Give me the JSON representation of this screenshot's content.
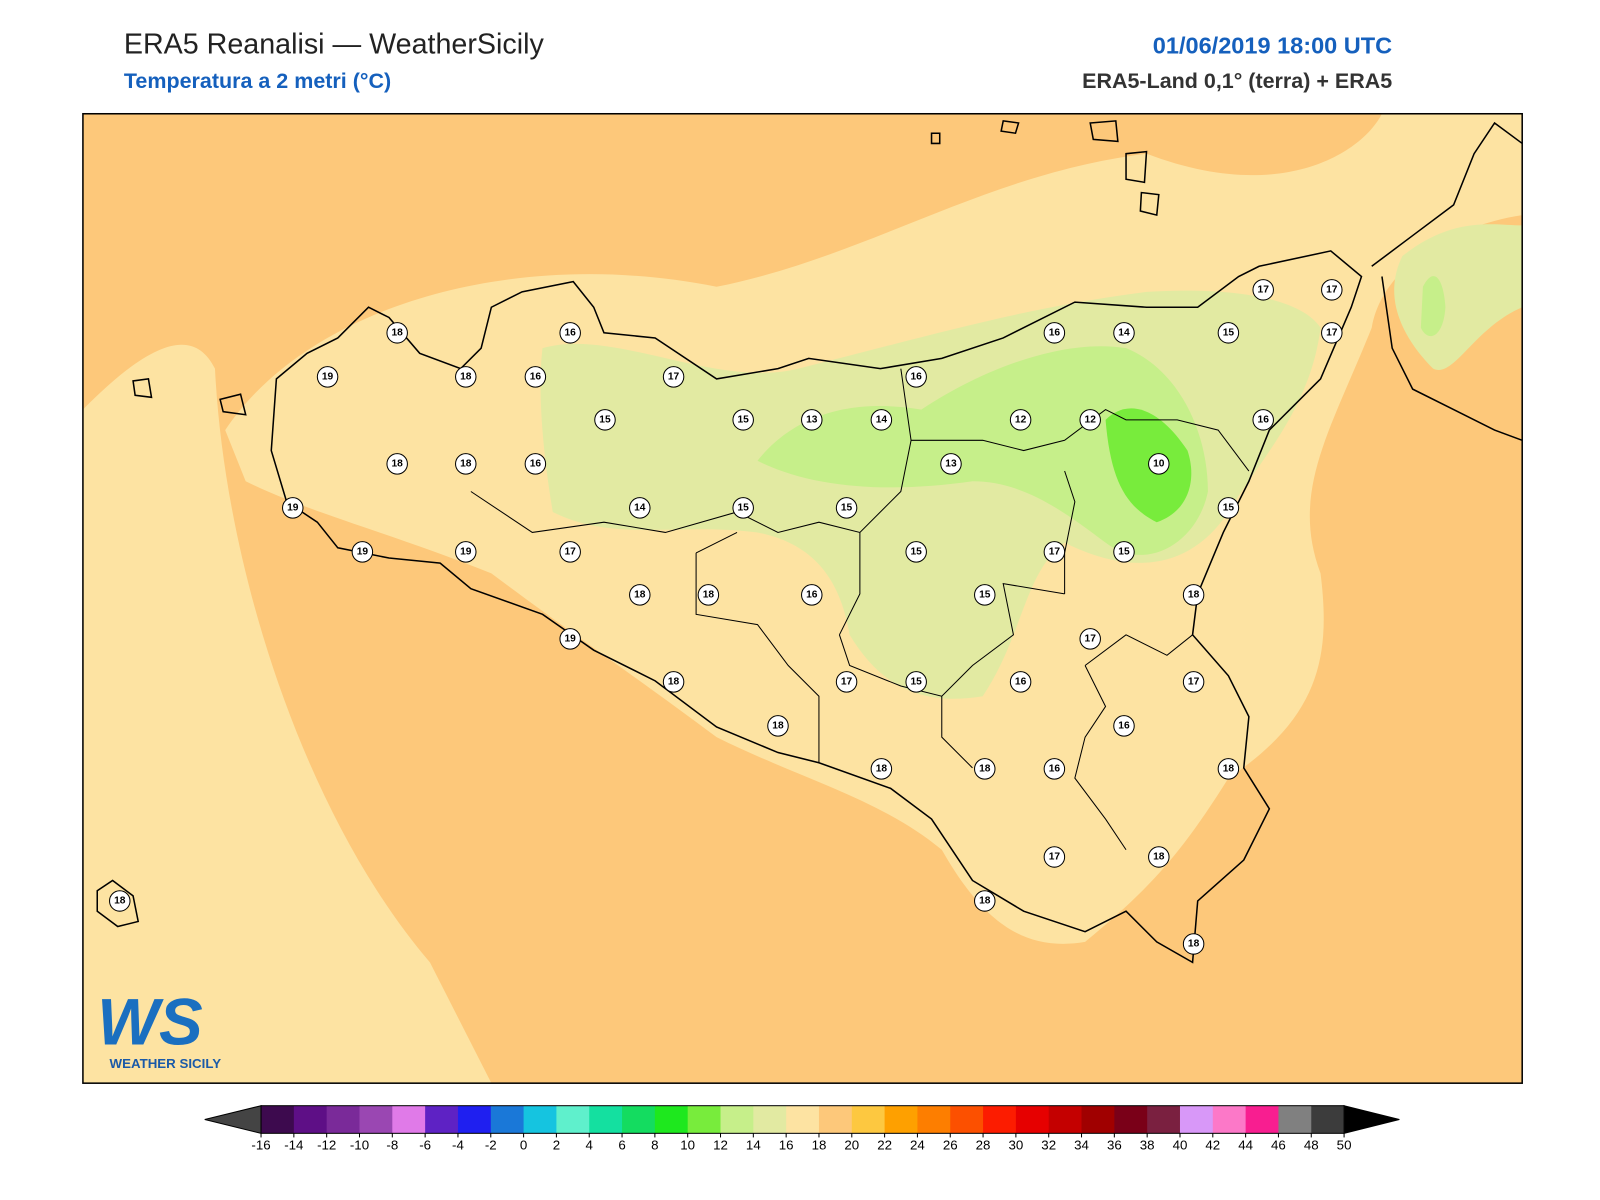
{
  "header": {
    "title": "ERA5 Reanalisi — WeatherSicily",
    "subtitle": "Temperatura a 2 metri (°C)",
    "date": "01/06/2019 18:00 UTC",
    "source": "ERA5-Land 0,1° (terra) + ERA5"
  },
  "logo": {
    "initials": "WS",
    "name": "WEATHER SICILY"
  },
  "stations": [
    18,
    16,
    19,
    18,
    16,
    17,
    16,
    16,
    14,
    15,
    17,
    17,
    17,
    15,
    15,
    13,
    14,
    12,
    12,
    16,
    18,
    18,
    16,
    13,
    10,
    19,
    14,
    15,
    15,
    15,
    19,
    19,
    17,
    15,
    17,
    15,
    18,
    18,
    16,
    15,
    18,
    19,
    17,
    18,
    17,
    15,
    16,
    17,
    18,
    16,
    18,
    18,
    16,
    18,
    17,
    18,
    18,
    18,
    18
  ],
  "colorbar": {
    "ticks": [
      -16,
      -14,
      -12,
      -10,
      -8,
      -6,
      -4,
      -2,
      0,
      2,
      4,
      6,
      8,
      10,
      12,
      14,
      16,
      18,
      20,
      22,
      24,
      26,
      28,
      30,
      32,
      34,
      36,
      38,
      40,
      42,
      44,
      46,
      48,
      50
    ],
    "colors": [
      "#3d0a4e",
      "#5e0f86",
      "#7a2a99",
      "#9a47b2",
      "#e07ae8",
      "#5e22c4",
      "#1f1ff0",
      "#1a78d8",
      "#15c4e0",
      "#5ff0cc",
      "#14e0a0",
      "#14dc60",
      "#1ee81e",
      "#78ec3c",
      "#c6ef8a",
      "#e2eaa2",
      "#fde3a2",
      "#fdc87a",
      "#fdc840",
      "#fea000",
      "#fd7e00",
      "#fc5000",
      "#fc1c00",
      "#e60000",
      "#c40000",
      "#a00000",
      "#7a0018",
      "#7a2040",
      "#d898f8",
      "#fc78c8",
      "#f81e90",
      "#808080",
      "#3c3c3c"
    ],
    "under_color": "#444444",
    "over_color": "#000000"
  }
}
